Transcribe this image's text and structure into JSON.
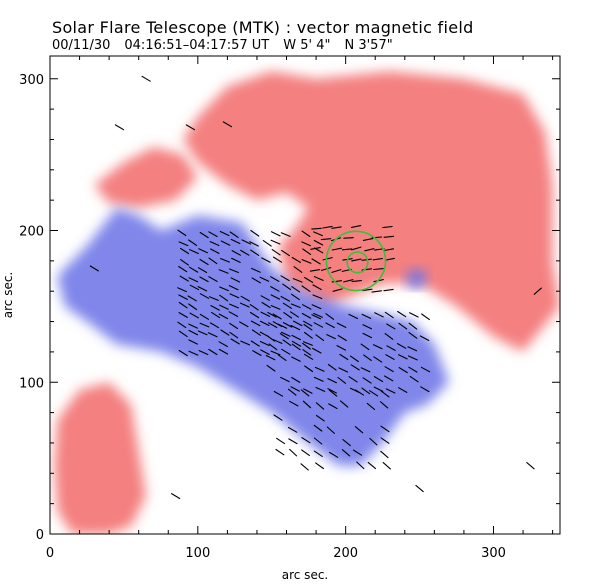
{
  "header": {
    "title": "Solar Flare Telescope (MTK) : vector magnetic field",
    "date": "00/11/30",
    "time_range": "04:16:51–04:17:57 UT",
    "pos_w": "W 5' 4\"",
    "pos_n": "N 3'57\""
  },
  "colors": {
    "positive": "#f26a6a",
    "negative": "#6a72e6",
    "vector": "#000000",
    "marker": "#3cbf3c"
  },
  "chart_data": {
    "type": "heatmap",
    "title": "Solar Flare Telescope (MTK) : vector magnetic field",
    "xlabel": "arc sec.",
    "ylabel": "arc sec.",
    "xlim": [
      0,
      345
    ],
    "ylim": [
      0,
      315
    ],
    "xticks": [
      0,
      100,
      200,
      300
    ],
    "yticks": [
      0,
      100,
      200,
      300
    ],
    "xtick_labels": [
      "0",
      "100",
      "200",
      "300"
    ],
    "ytick_labels": [
      "0",
      "100",
      "200",
      "300"
    ],
    "regions": [
      {
        "polarity": "positive",
        "label": "positive field (red)",
        "outline": [
          [
            100,
            275
          ],
          [
            120,
            295
          ],
          [
            150,
            305
          ],
          [
            180,
            300
          ],
          [
            230,
            305
          ],
          [
            280,
            300
          ],
          [
            320,
            290
          ],
          [
            335,
            265
          ],
          [
            340,
            230
          ],
          [
            340,
            180
          ],
          [
            345,
            150
          ],
          [
            320,
            120
          ],
          [
            300,
            130
          ],
          [
            275,
            150
          ],
          [
            250,
            165
          ],
          [
            225,
            165
          ],
          [
            200,
            155
          ],
          [
            185,
            150
          ],
          [
            160,
            165
          ],
          [
            155,
            190
          ],
          [
            165,
            200
          ],
          [
            175,
            215
          ],
          [
            160,
            225
          ],
          [
            140,
            220
          ],
          [
            120,
            230
          ],
          [
            100,
            245
          ],
          [
            90,
            260
          ]
        ]
      },
      {
        "polarity": "positive",
        "label": "positive field (red)",
        "outline": [
          [
            30,
            230
          ],
          [
            50,
            245
          ],
          [
            70,
            255
          ],
          [
            90,
            250
          ],
          [
            100,
            235
          ],
          [
            85,
            220
          ],
          [
            60,
            215
          ],
          [
            40,
            218
          ]
        ]
      },
      {
        "polarity": "positive",
        "label": "positive field (red)",
        "outline": [
          [
            5,
            75
          ],
          [
            20,
            95
          ],
          [
            40,
            100
          ],
          [
            55,
            85
          ],
          [
            60,
            55
          ],
          [
            65,
            25
          ],
          [
            55,
            5
          ],
          [
            40,
            0
          ],
          [
            15,
            0
          ],
          [
            5,
            15
          ],
          [
            3,
            45
          ]
        ]
      },
      {
        "polarity": "negative",
        "label": "negative field (blue)",
        "outline": [
          [
            5,
            170
          ],
          [
            25,
            190
          ],
          [
            45,
            215
          ],
          [
            60,
            210
          ],
          [
            75,
            200
          ],
          [
            100,
            210
          ],
          [
            130,
            205
          ],
          [
            150,
            175
          ],
          [
            170,
            160
          ],
          [
            200,
            150
          ],
          [
            225,
            145
          ],
          [
            245,
            140
          ],
          [
            260,
            125
          ],
          [
            270,
            100
          ],
          [
            255,
            85
          ],
          [
            240,
            80
          ],
          [
            225,
            60
          ],
          [
            210,
            45
          ],
          [
            195,
            45
          ],
          [
            175,
            60
          ],
          [
            150,
            80
          ],
          [
            125,
            95
          ],
          [
            100,
            110
          ],
          [
            75,
            120
          ],
          [
            45,
            125
          ],
          [
            25,
            140
          ],
          [
            10,
            150
          ]
        ]
      },
      {
        "polarity": "negative",
        "label": "negative field (blue)",
        "outline": [
          [
            240,
            170
          ],
          [
            248,
            176
          ],
          [
            256,
            170
          ],
          [
            252,
            162
          ],
          [
            243,
            162
          ]
        ]
      }
    ],
    "vector_field": {
      "description": "transverse magnetic field vectors",
      "clusters": [
        {
          "x": [
            90,
            185
          ],
          "y": [
            120,
            200
          ],
          "step_x": 7,
          "step_y": 6,
          "angle_deg": -28
        },
        {
          "x": [
            150,
            260
          ],
          "y": [
            95,
            145
          ],
          "step_x": 8,
          "step_y": 7,
          "angle_deg": -30
        },
        {
          "x": [
            155,
            230
          ],
          "y": [
            45,
            95
          ],
          "step_x": 9,
          "step_y": 8,
          "angle_deg": -35
        },
        {
          "x": [
            180,
            235
          ],
          "y": [
            160,
            205
          ],
          "step_x": 7,
          "step_y": 7,
          "angle_deg": 10
        }
      ],
      "scattered": [
        {
          "x": 47,
          "y": 268,
          "angle_deg": -30
        },
        {
          "x": 95,
          "y": 268,
          "angle_deg": -30
        },
        {
          "x": 120,
          "y": 270,
          "angle_deg": -30
        },
        {
          "x": 65,
          "y": 300,
          "angle_deg": -30
        },
        {
          "x": 325,
          "y": 45,
          "angle_deg": -40
        },
        {
          "x": 330,
          "y": 160,
          "angle_deg": 40
        },
        {
          "x": 250,
          "y": 30,
          "angle_deg": -40
        },
        {
          "x": 85,
          "y": 25,
          "angle_deg": -30
        },
        {
          "x": 30,
          "y": 175,
          "angle_deg": -30
        }
      ]
    },
    "markers": [
      {
        "type": "circle",
        "x": 207,
        "y": 180,
        "r": 20,
        "label": "outer circle"
      },
      {
        "type": "circle",
        "x": 208,
        "y": 179,
        "r": 7,
        "label": "inner circle"
      }
    ]
  }
}
